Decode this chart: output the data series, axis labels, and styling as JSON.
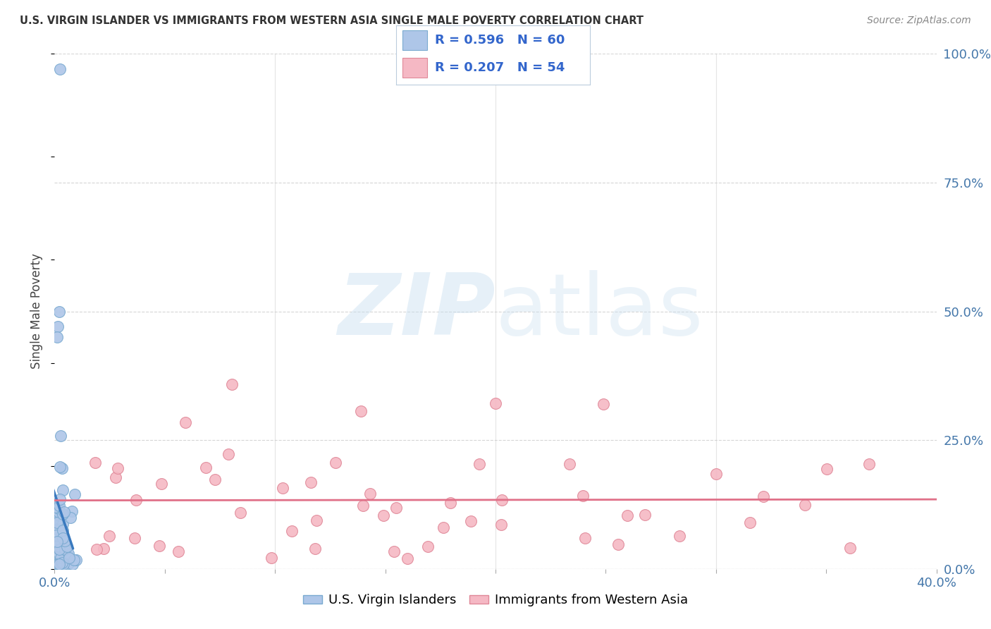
{
  "title": "U.S. VIRGIN ISLANDER VS IMMIGRANTS FROM WESTERN ASIA SINGLE MALE POVERTY CORRELATION CHART",
  "source": "Source: ZipAtlas.com",
  "ylabel": "Single Male Poverty",
  "ytick_labels": [
    "0.0%",
    "25.0%",
    "50.0%",
    "75.0%",
    "100.0%"
  ],
  "ytick_values": [
    0.0,
    0.25,
    0.5,
    0.75,
    1.0
  ],
  "series1_name": "U.S. Virgin Islanders",
  "series1_color": "#aec6e8",
  "series1_edge_color": "#7aaad0",
  "series1_R": 0.596,
  "series1_N": 60,
  "series1_line_color": "#3a7abf",
  "series2_name": "Immigrants from Western Asia",
  "series2_color": "#f5b8c4",
  "series2_edge_color": "#e08898",
  "series2_R": 0.207,
  "series2_N": 54,
  "series2_line_color": "#e07088",
  "watermark_zip": "ZIP",
  "watermark_atlas": "atlas",
  "bg_color": "#ffffff",
  "grid_color": "#cccccc",
  "xlim": [
    0.0,
    0.4
  ],
  "ylim": [
    0.0,
    1.0
  ],
  "legend_R_color": "#3366cc",
  "legend_N_color": "#3366cc",
  "title_color": "#333333",
  "source_color": "#888888",
  "tick_color": "#4477aa"
}
